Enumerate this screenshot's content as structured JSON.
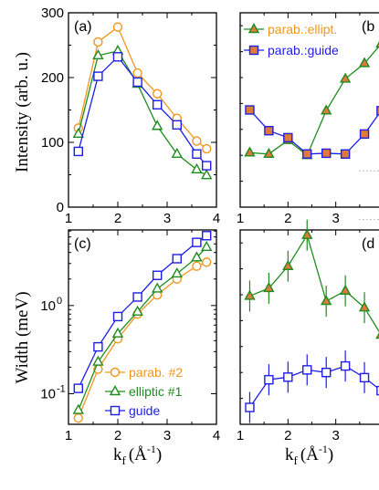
{
  "colors": {
    "orange": "#f0961e",
    "green": "#1e8c1e",
    "blue": "#1e1ee6",
    "tri_fill": "#50a850",
    "sq_fill_b": "#e07a3c"
  },
  "chart_data": [
    {
      "id": "a",
      "type": "line",
      "panel_label": "(a)",
      "xlim": [
        1,
        4
      ],
      "ylim": [
        0,
        300
      ],
      "xticks": [
        "1",
        "2",
        "3",
        "4"
      ],
      "yticks": [
        "0",
        "100",
        "200",
        "300"
      ],
      "ylabel": "Intensity (arb. u.)",
      "series": [
        {
          "key": "orange",
          "marker": "circle",
          "x": [
            1.2,
            1.6,
            2.0,
            2.4,
            2.8,
            3.2,
            3.6,
            3.8
          ],
          "y": [
            122,
            255,
            278,
            207,
            175,
            137,
            102,
            90
          ]
        },
        {
          "key": "green",
          "marker": "triangle",
          "x": [
            1.2,
            1.6,
            2.0,
            2.4,
            2.8,
            3.2,
            3.6,
            3.8
          ],
          "y": [
            113,
            234,
            241,
            190,
            125,
            82,
            58,
            49
          ]
        },
        {
          "key": "blue",
          "marker": "square",
          "x": [
            1.2,
            1.6,
            2.0,
            2.4,
            2.8,
            3.2,
            3.6,
            3.8
          ],
          "y": [
            86,
            202,
            232,
            193,
            158,
            127,
            82,
            64
          ]
        }
      ]
    },
    {
      "id": "b",
      "type": "line",
      "panel_label": "(b",
      "xlim": [
        1,
        4
      ],
      "xticks": [
        "1",
        "2",
        "3"
      ],
      "legend": [
        {
          "key": "green",
          "marker": "triangle",
          "label": "parab.:ellipt."
        },
        {
          "key": "blue",
          "marker": "square",
          "label": "parab.:guide"
        }
      ],
      "series": [
        {
          "key": "green",
          "marker": "triangle",
          "x": [
            1.2,
            1.6,
            2.0,
            2.4,
            2.8,
            3.2,
            3.6,
            3.95
          ],
          "y": [
            1.1,
            1.05,
            1.58,
            1.0,
            2.72,
            3.95,
            4.55,
            5.3
          ]
        },
        {
          "key": "blue",
          "marker": "square",
          "x": [
            1.2,
            1.6,
            2.0,
            2.4,
            2.8,
            3.2,
            3.6,
            3.95
          ],
          "y": [
            2.75,
            1.95,
            1.68,
            1.05,
            1.08,
            1.05,
            1.82,
            2.72
          ]
        }
      ]
    },
    {
      "id": "c",
      "type": "line",
      "scale": "log",
      "panel_label": "(c)",
      "xlim": [
        1,
        4
      ],
      "xticks": [
        "1",
        "2",
        "3",
        "4"
      ],
      "yticks": [
        "10",
        "10"
      ],
      "ytick_exponents": [
        "0",
        "-1"
      ],
      "ylabel": "Width (meV)",
      "legend": [
        {
          "key": "orange",
          "marker": "circle",
          "label": "parab. #2"
        },
        {
          "key": "green",
          "marker": "triangle",
          "label": "elliptic #1"
        },
        {
          "key": "blue",
          "marker": "square",
          "label": "guide"
        }
      ],
      "series": [
        {
          "key": "orange",
          "marker": "circle",
          "x": [
            1.2,
            1.6,
            2.0,
            2.4,
            2.8,
            3.2,
            3.6,
            3.8
          ],
          "y": [
            0.053,
            0.19,
            0.42,
            0.8,
            1.32,
            2.0,
            2.8,
            3.1
          ]
        },
        {
          "key": "green",
          "marker": "triangle",
          "x": [
            1.2,
            1.6,
            2.0,
            2.4,
            2.8,
            3.2,
            3.6,
            3.8
          ],
          "y": [
            0.065,
            0.23,
            0.48,
            0.85,
            1.55,
            2.3,
            3.5,
            4.6
          ]
        },
        {
          "key": "blue",
          "marker": "square",
          "x": [
            1.2,
            1.6,
            2.0,
            2.4,
            2.8,
            3.2,
            3.6,
            3.8
          ],
          "y": [
            0.115,
            0.34,
            0.75,
            1.25,
            2.2,
            3.4,
            5.2,
            6.2
          ]
        }
      ]
    },
    {
      "id": "d",
      "type": "line",
      "panel_label": "(d",
      "xlim": [
        1,
        4
      ],
      "xticks": [
        "1",
        "2",
        "3"
      ],
      "series": [
        {
          "key": "green",
          "marker": "triangle",
          "x": [
            1.2,
            1.6,
            2.0,
            2.4,
            2.8,
            3.2,
            3.6,
            3.95
          ],
          "y": [
            3.95,
            4.25,
            5.1,
            6.3,
            3.75,
            4.15,
            3.5,
            2.45
          ]
        },
        {
          "key": "blue",
          "marker": "square",
          "x": [
            1.2,
            1.6,
            2.0,
            2.4,
            2.8,
            3.2,
            3.6,
            3.95
          ],
          "y": [
            -0.35,
            0.72,
            0.82,
            1.1,
            1.0,
            1.25,
            0.8,
            0.3
          ]
        }
      ]
    }
  ],
  "xlabel_main": "k",
  "xlabel_sub": "f",
  "xlabel_unit": "(Å",
  "xlabel_exp": "-1",
  "xlabel_close": ")"
}
